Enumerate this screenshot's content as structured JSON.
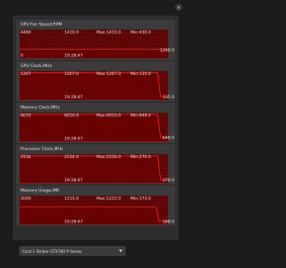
{
  "window": {
    "close": "×",
    "card": "Card 1  Striker GTX760 P Series"
  },
  "panels": [
    {
      "title": "GPU Fan Speed,RPM",
      "scale_max": "4480",
      "scale_min": "0",
      "current": "1410.0",
      "max": "Max:1410.0",
      "min": "Min:430.0",
      "last": "1290.0",
      "time": "19:28:47"
    },
    {
      "title": "GPU Clock,MHz",
      "scale_max": "1267",
      "current": "1267.0",
      "max": "Max:1267.0",
      "min": "Min:135.0",
      "last": "135.0",
      "time": "19:28:47"
    },
    {
      "title": "Memory Clock,MHz",
      "scale_max": "6010",
      "current": "6010.0",
      "max": "Max:6010.0",
      "min": "Min:648.0",
      "last": "648.0",
      "time": "19:28:47"
    },
    {
      "title": "Processor Clock,MHz",
      "scale_max": "2534",
      "current": "2534.0",
      "max": "Max:2534.0",
      "min": "Min:270.0",
      "last": "270.0",
      "time": "19:28:47"
    },
    {
      "title": "Memory Usage,MB",
      "scale_max": "2000",
      "current": "1215.0",
      "max": "Max:1215.0",
      "min": "Min:173.0",
      "last": "188.0",
      "time": "19:28:47"
    }
  ]
}
